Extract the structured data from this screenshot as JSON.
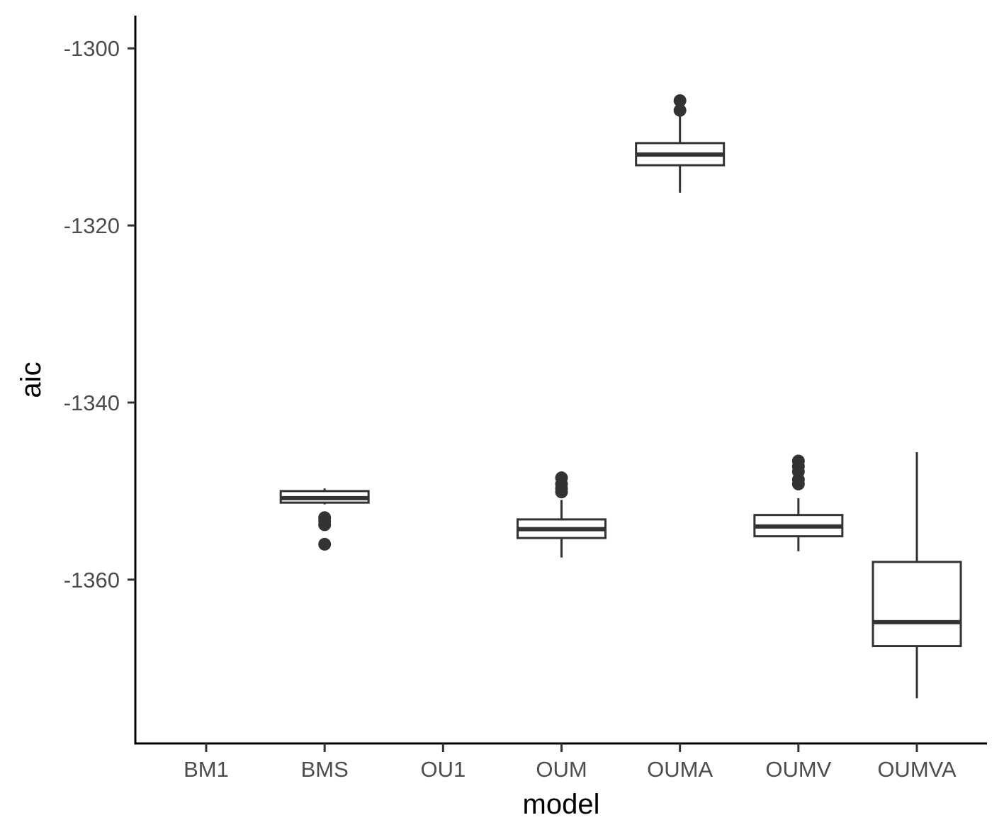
{
  "chart_data": {
    "type": "boxplot",
    "title": "",
    "xlabel": "model",
    "ylabel": "aic",
    "categories": [
      "BM1",
      "BMS",
      "OU1",
      "OUM",
      "OUMA",
      "OUMV",
      "OUMVA"
    ],
    "ylim": [
      -1378.5,
      -1296.3
    ],
    "y_ticks": [
      -1300,
      -1320,
      -1340,
      -1360
    ],
    "y_tick_labels": [
      "-1300",
      "-1320",
      "-1340",
      "-1360"
    ],
    "grid": false,
    "legend": "none",
    "colors": {
      "box": "#333333",
      "axis": "#000000",
      "tick_text": "#4d4d4d",
      "background": "#ffffff"
    },
    "boxes": [
      {
        "category": "BMS",
        "whisker_low": -1351.5,
        "q1": -1351.3,
        "median": -1350.8,
        "q3": -1350.0,
        "whisker_high": -1349.7,
        "outliers": [
          -1353.0,
          -1353.4,
          -1353.8,
          -1356.0
        ]
      },
      {
        "category": "OUM",
        "whisker_low": -1357.5,
        "q1": -1355.3,
        "median": -1354.3,
        "q3": -1353.2,
        "whisker_high": -1351.0,
        "outliers": [
          -1348.5,
          -1349.2,
          -1349.7,
          -1350.1
        ]
      },
      {
        "category": "OUMA",
        "whisker_low": -1316.3,
        "q1": -1313.2,
        "median": -1312.0,
        "q3": -1310.7,
        "whisker_high": -1307.7,
        "outliers": [
          -1305.9,
          -1307.0
        ]
      },
      {
        "category": "OUMV",
        "whisker_low": -1356.8,
        "q1": -1355.1,
        "median": -1354.0,
        "q3": -1352.7,
        "whisker_high": -1350.8,
        "outliers": [
          -1346.6,
          -1347.2,
          -1347.8,
          -1348.7,
          -1349.2
        ]
      },
      {
        "category": "OUMVA",
        "whisker_low": -1373.4,
        "q1": -1367.5,
        "median": -1364.8,
        "q3": -1358.0,
        "whisker_high": -1345.6,
        "outliers": []
      }
    ]
  }
}
